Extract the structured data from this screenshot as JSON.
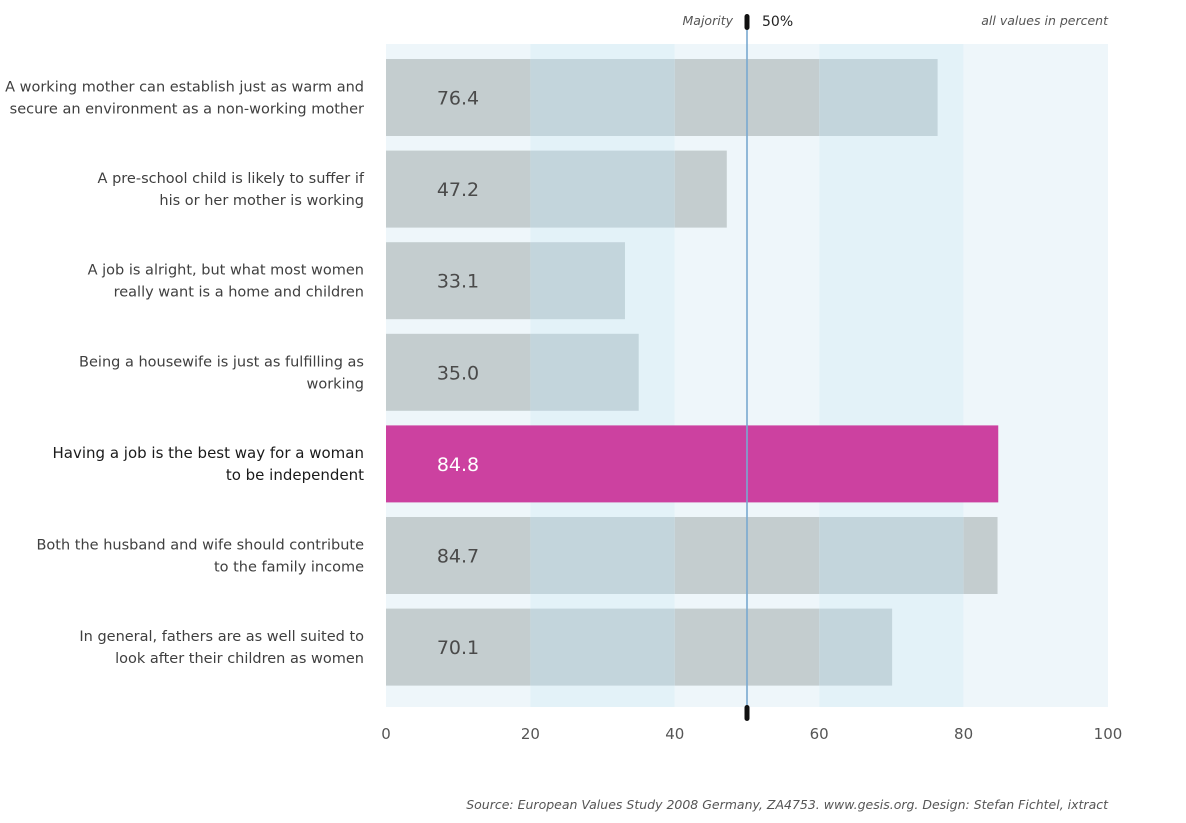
{
  "chart_data": {
    "type": "bar",
    "orientation": "horizontal",
    "categories": [
      [
        "A working mother can establish just as warm and",
        "secure an environment as a non-working mother"
      ],
      [
        "A pre-school child is likely to suffer if",
        "his or her mother is working"
      ],
      [
        "A job is alright, but what most women",
        "really want is a home and children"
      ],
      [
        "Being a housewife is just as fulfilling as",
        "working"
      ],
      [
        "Having a job is the best way for a woman",
        "to be independent"
      ],
      [
        "Both the husband and wife should contribute",
        "to the family income"
      ],
      [
        "In general, fathers are as well suited to",
        "look after their children as women"
      ]
    ],
    "values": [
      76.4,
      47.2,
      33.1,
      35.0,
      84.8,
      84.7,
      70.1
    ],
    "value_labels": [
      "76.4",
      "47.2",
      "33.1",
      "35.0",
      "84.8",
      "84.7",
      "70.1"
    ],
    "highlight_index": 4,
    "xlim": [
      0,
      100
    ],
    "xticks": [
      0,
      20,
      40,
      60,
      80,
      100
    ],
    "reference_line": {
      "value": 50,
      "label": "Majority",
      "value_label": "50%"
    },
    "unit_note": "all values in percent",
    "source": "Source: European Values Study 2008 Germany, ZA4753. www.gesis.org. Design: Stefan Fichtel, ixtract",
    "colors": {
      "bar": "#c4cdcf",
      "bar_band": "#c3d5dc",
      "highlight": "#cc41a0",
      "band_light": "#eef6fa",
      "band_dark": "#e3f2f8",
      "reference_line": "#79a9d0",
      "marker": "#111111"
    }
  }
}
